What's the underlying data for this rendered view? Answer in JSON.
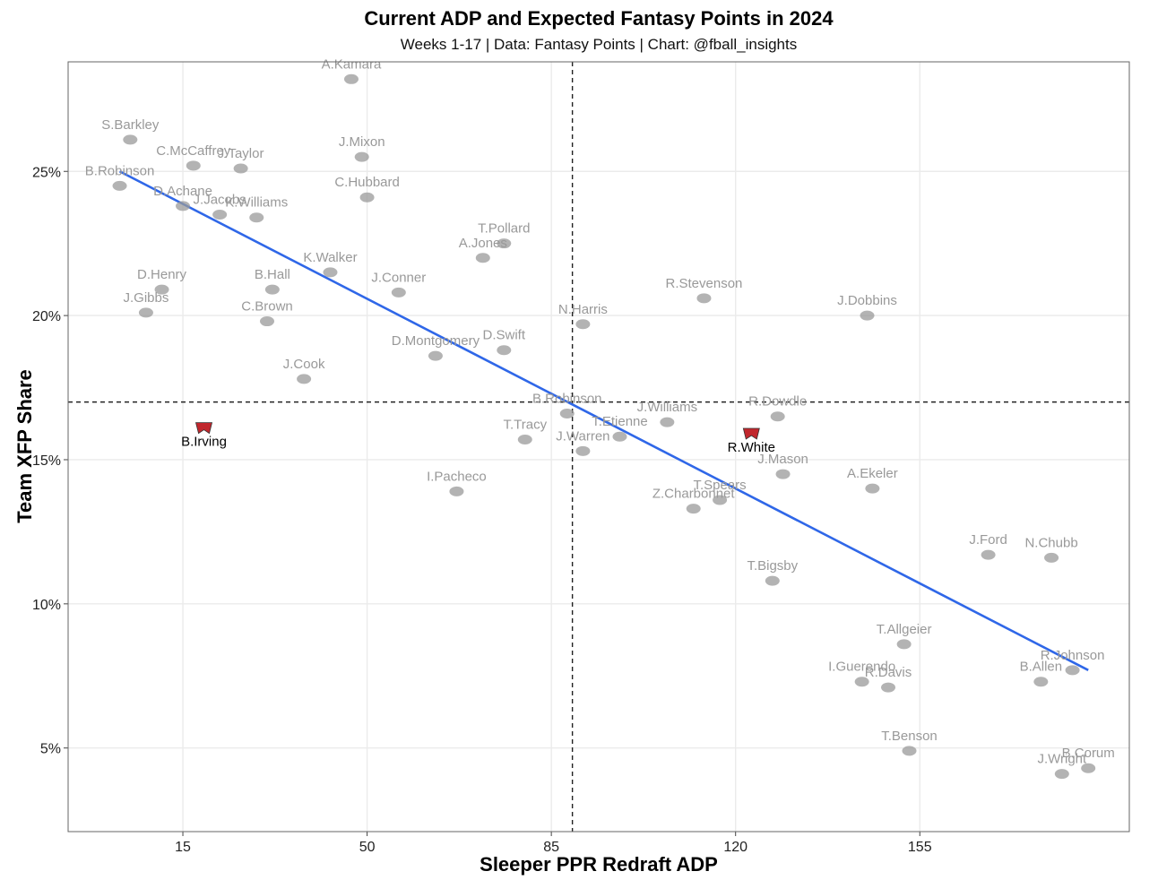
{
  "title": "Current ADP and Expected Fantasy Points in 2024",
  "subtitle": "Weeks 1-17 | Data: Fantasy Points | Chart: @fball_insights",
  "chart_data": {
    "type": "scatter",
    "xlabel": "Sleeper PPR Redraft ADP",
    "ylabel": "Team XFP Share",
    "xlim": [
      -6.8,
      194.8
    ],
    "ylim": [
      2.1,
      28.8
    ],
    "x_ticks": [
      15,
      50,
      85,
      120,
      155
    ],
    "x_tick_labels": [
      "15",
      "50",
      "85",
      "120",
      "155"
    ],
    "y_ticks": [
      5,
      10,
      15,
      20,
      25
    ],
    "y_tick_labels": [
      "5%",
      "10%",
      "15%",
      "20%",
      "25%"
    ],
    "grid": true,
    "reference_lines": {
      "x": 89,
      "y": 17
    },
    "trend_line": {
      "x": [
        3,
        187
      ],
      "y": [
        25.0,
        7.7
      ],
      "color": "#2f67e8"
    },
    "highlight_color": "#c1272d",
    "muted_color": "#999999",
    "points": [
      {
        "label": "A.Kamara",
        "x": 47,
        "y": 28.2,
        "highlight": false
      },
      {
        "label": "S.Barkley",
        "x": 5,
        "y": 26.1,
        "highlight": false
      },
      {
        "label": "C.McCaffrey",
        "x": 17,
        "y": 25.2,
        "highlight": false
      },
      {
        "label": "J.Mixon",
        "x": 49,
        "y": 25.5,
        "highlight": false
      },
      {
        "label": "B.Robinson",
        "x": 3,
        "y": 24.5,
        "highlight": false
      },
      {
        "label": "J.Taylor",
        "x": 26,
        "y": 25.1,
        "highlight": false
      },
      {
        "label": "C.Hubbard",
        "x": 50,
        "y": 24.1,
        "highlight": false
      },
      {
        "label": "D.Achane",
        "x": 15,
        "y": 23.8,
        "highlight": false
      },
      {
        "label": "J.Jacobs",
        "x": 22,
        "y": 23.5,
        "highlight": false
      },
      {
        "label": "K.Williams",
        "x": 29,
        "y": 23.4,
        "highlight": false
      },
      {
        "label": "T.Pollard",
        "x": 76,
        "y": 22.5,
        "highlight": false
      },
      {
        "label": "A.Jones",
        "x": 72,
        "y": 22.0,
        "highlight": false
      },
      {
        "label": "K.Walker",
        "x": 43,
        "y": 21.5,
        "highlight": false
      },
      {
        "label": "B.Hall",
        "x": 32,
        "y": 20.9,
        "highlight": false
      },
      {
        "label": "D.Henry",
        "x": 11,
        "y": 20.9,
        "highlight": false
      },
      {
        "label": "J.Conner",
        "x": 56,
        "y": 20.8,
        "highlight": false
      },
      {
        "label": "R.Stevenson",
        "x": 114,
        "y": 20.6,
        "highlight": false
      },
      {
        "label": "J.Dobbins",
        "x": 145,
        "y": 20.0,
        "highlight": false
      },
      {
        "label": "J.Gibbs",
        "x": 8,
        "y": 20.1,
        "highlight": false
      },
      {
        "label": "N.Harris",
        "x": 91,
        "y": 19.7,
        "highlight": false
      },
      {
        "label": "C.Brown",
        "x": 31,
        "y": 19.8,
        "highlight": false
      },
      {
        "label": "D.Montgomery",
        "x": 63,
        "y": 18.6,
        "highlight": false
      },
      {
        "label": "D.Swift",
        "x": 76,
        "y": 18.8,
        "highlight": false
      },
      {
        "label": "J.Cook",
        "x": 38,
        "y": 17.8,
        "highlight": false
      },
      {
        "label": "B.Robinson",
        "x": 88,
        "y": 16.6,
        "highlight": false
      },
      {
        "label": "J.Williams",
        "x": 107,
        "y": 16.3,
        "highlight": false
      },
      {
        "label": "R.Dowdle",
        "x": 128,
        "y": 16.5,
        "highlight": false
      },
      {
        "label": "B.Irving",
        "x": 19,
        "y": 16.1,
        "highlight": true
      },
      {
        "label": "T.Etienne",
        "x": 98,
        "y": 15.8,
        "highlight": false
      },
      {
        "label": "R.White",
        "x": 123,
        "y": 15.9,
        "highlight": true
      },
      {
        "label": "T.Tracy",
        "x": 80,
        "y": 15.7,
        "highlight": false
      },
      {
        "label": "J.Warren",
        "x": 91,
        "y": 15.3,
        "highlight": false
      },
      {
        "label": "J.Mason",
        "x": 129,
        "y": 14.5,
        "highlight": false
      },
      {
        "label": "A.Ekeler",
        "x": 146,
        "y": 14.0,
        "highlight": false
      },
      {
        "label": "I.Pacheco",
        "x": 67,
        "y": 13.9,
        "highlight": false
      },
      {
        "label": "T.Spears",
        "x": 117,
        "y": 13.6,
        "highlight": false
      },
      {
        "label": "Z.Charbonnet",
        "x": 112,
        "y": 13.3,
        "highlight": false
      },
      {
        "label": "N.Chubb",
        "x": 180,
        "y": 11.6,
        "highlight": false
      },
      {
        "label": "J.Ford",
        "x": 168,
        "y": 11.7,
        "highlight": false
      },
      {
        "label": "T.Bigsby",
        "x": 127,
        "y": 10.8,
        "highlight": false
      },
      {
        "label": "T.Allgeier",
        "x": 152,
        "y": 8.6,
        "highlight": false
      },
      {
        "label": "R.Johnson",
        "x": 184,
        "y": 7.7,
        "highlight": false
      },
      {
        "label": "I.Guerendo",
        "x": 144,
        "y": 7.3,
        "highlight": false
      },
      {
        "label": "B.Allen",
        "x": 178,
        "y": 7.3,
        "highlight": false
      },
      {
        "label": "R.Davis",
        "x": 149,
        "y": 7.1,
        "highlight": false
      },
      {
        "label": "T.Benson",
        "x": 153,
        "y": 4.9,
        "highlight": false
      },
      {
        "label": "B.Corum",
        "x": 187,
        "y": 4.3,
        "highlight": false
      },
      {
        "label": "J.Wright",
        "x": 182,
        "y": 4.1,
        "highlight": false
      }
    ]
  }
}
